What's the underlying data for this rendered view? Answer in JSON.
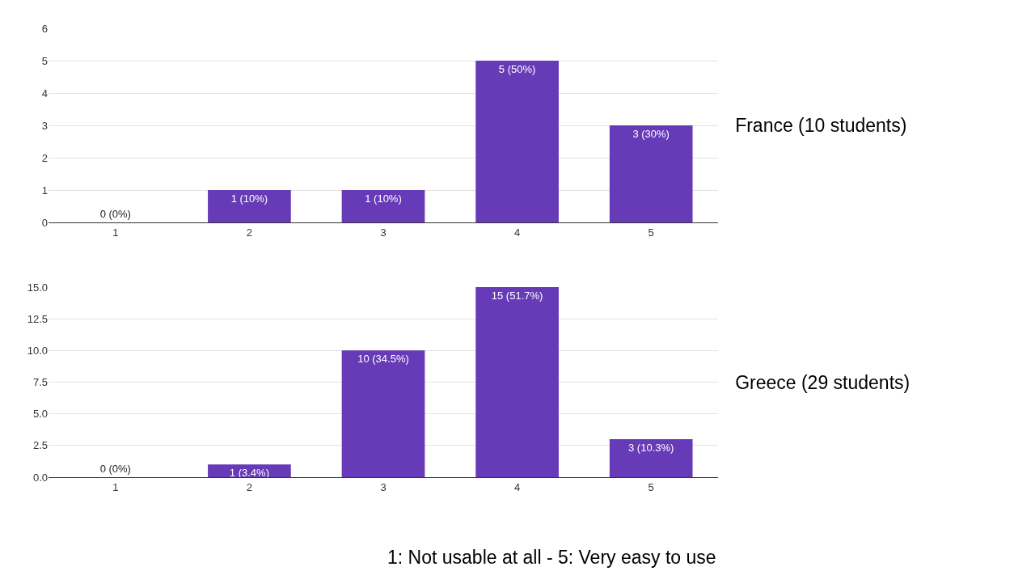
{
  "chart_data": [
    {
      "type": "bar",
      "annotations": [
        "France (10 students)"
      ],
      "categories": [
        "1",
        "2",
        "3",
        "4",
        "5"
      ],
      "values": [
        0,
        1,
        1,
        5,
        3
      ],
      "color": "#673ab7",
      "value_labels": [
        "0 (0%)",
        "1 (10%)",
        "1 (10%)",
        "5 (50%)",
        "3 (30%)"
      ],
      "ylim": [
        0,
        6
      ],
      "yticks": [
        0,
        1,
        2,
        3,
        4,
        5,
        6
      ],
      "grid": "y"
    },
    {
      "type": "bar",
      "annotations": [
        "Greece (29 students)"
      ],
      "xlabel": "1: Not usable at all - 5: Very easy to use",
      "categories": [
        "1",
        "2",
        "3",
        "4",
        "5"
      ],
      "values": [
        0,
        1,
        10,
        15,
        3
      ],
      "color": "#673ab7",
      "value_labels": [
        "0 (0%)",
        "1 (3.4%)",
        "10 (34.5%)",
        "15 (51.7%)",
        "3 (10.3%)"
      ],
      "ylim": [
        0,
        15
      ],
      "yticks": [
        {
          "value": 0,
          "label": "0.0"
        },
        {
          "value": 2.5,
          "label": "2.5"
        },
        {
          "value": 5,
          "label": "5.0"
        },
        {
          "value": 7.5,
          "label": "7.5"
        },
        {
          "value": 10,
          "label": "10.0"
        },
        {
          "value": 12.5,
          "label": "12.5"
        },
        {
          "value": 15,
          "label": "15.0"
        }
      ],
      "grid": "y"
    }
  ]
}
